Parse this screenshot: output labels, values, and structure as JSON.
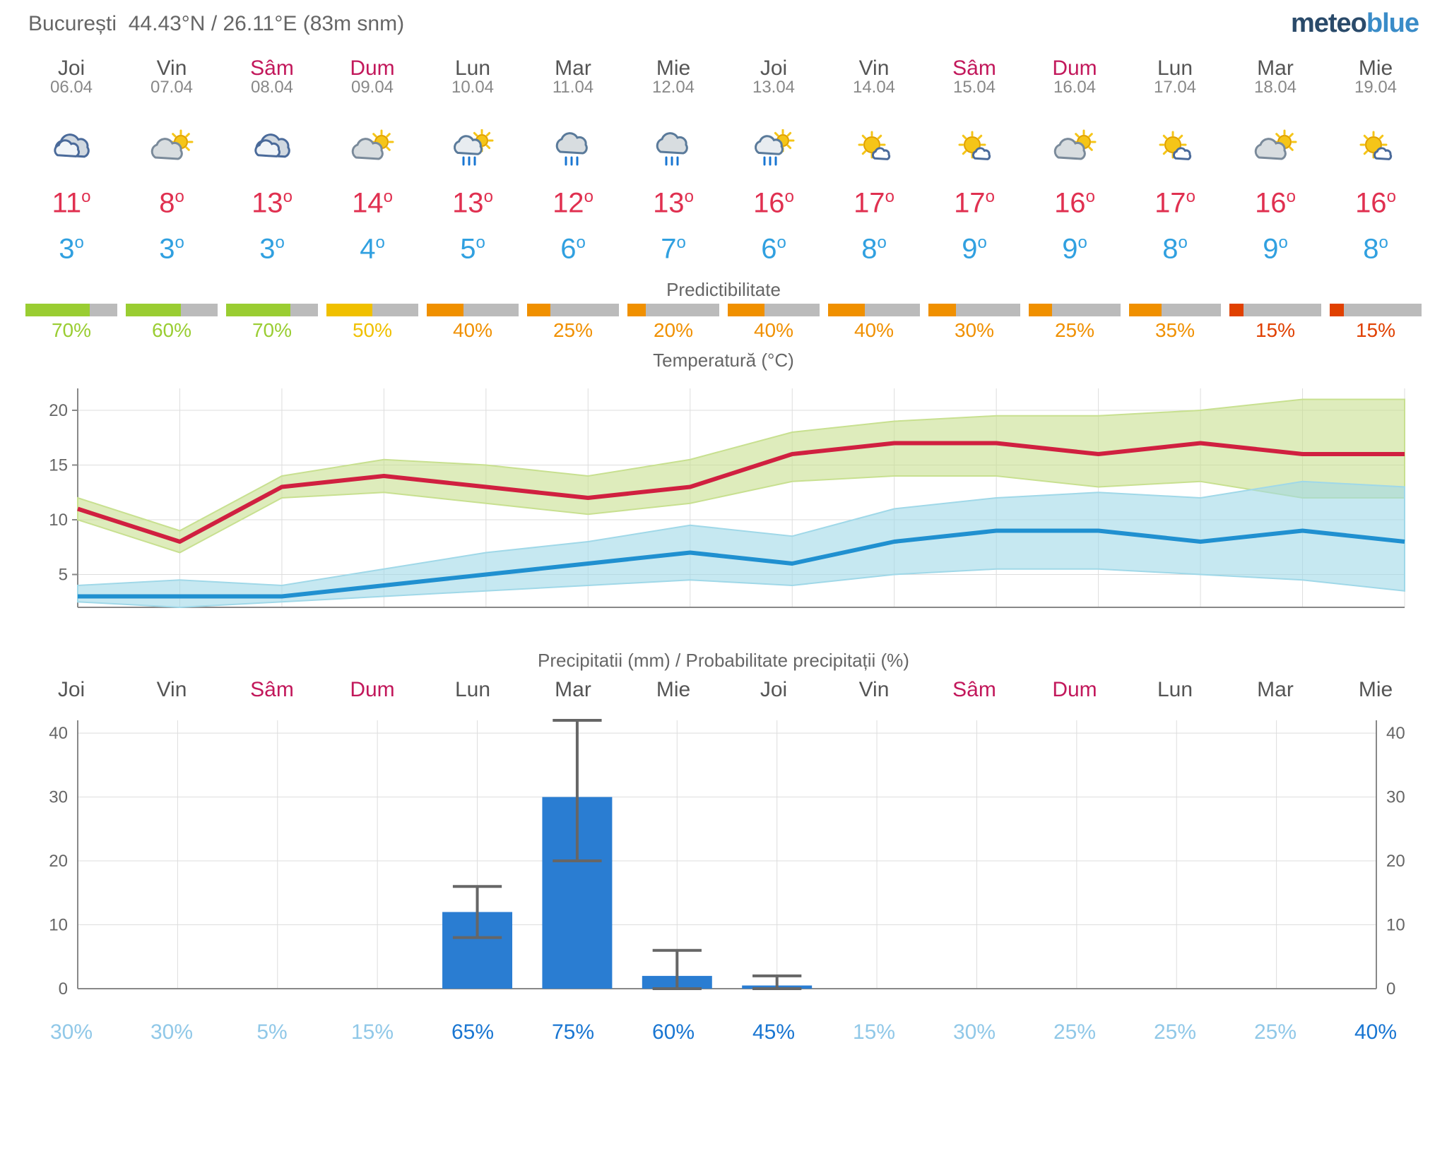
{
  "location": {
    "name": "București",
    "lat_label": "44.43°N",
    "lon_label": "26.11°E",
    "alt_label": "(83m snm)"
  },
  "brand": {
    "part1": "meteo",
    "part2": "blue"
  },
  "days": [
    {
      "name": "Joi",
      "date": "06.04",
      "weekend": false,
      "icon": "cloudy",
      "high": 11,
      "low": 3
    },
    {
      "name": "Vin",
      "date": "07.04",
      "weekend": false,
      "icon": "partly-sunny",
      "high": 8,
      "low": 3
    },
    {
      "name": "Sâm",
      "date": "08.04",
      "weekend": true,
      "icon": "cloudy",
      "high": 13,
      "low": 3
    },
    {
      "name": "Dum",
      "date": "09.04",
      "weekend": true,
      "icon": "partly-sunny",
      "high": 14,
      "low": 4
    },
    {
      "name": "Lun",
      "date": "10.04",
      "weekend": false,
      "icon": "sun-rain",
      "high": 13,
      "low": 5
    },
    {
      "name": "Mar",
      "date": "11.04",
      "weekend": false,
      "icon": "rain",
      "high": 12,
      "low": 6
    },
    {
      "name": "Mie",
      "date": "12.04",
      "weekend": false,
      "icon": "rain",
      "high": 13,
      "low": 7
    },
    {
      "name": "Joi",
      "date": "13.04",
      "weekend": false,
      "icon": "sun-rain",
      "high": 16,
      "low": 6
    },
    {
      "name": "Vin",
      "date": "14.04",
      "weekend": false,
      "icon": "sunny-cloud",
      "high": 17,
      "low": 8
    },
    {
      "name": "Sâm",
      "date": "15.04",
      "weekend": true,
      "icon": "sunny-cloud",
      "high": 17,
      "low": 9
    },
    {
      "name": "Dum",
      "date": "16.04",
      "weekend": true,
      "icon": "partly-sunny",
      "high": 16,
      "low": 9
    },
    {
      "name": "Lun",
      "date": "17.04",
      "weekend": false,
      "icon": "sunny-cloud",
      "high": 17,
      "low": 8
    },
    {
      "name": "Mar",
      "date": "18.04",
      "weekend": false,
      "icon": "partly-sunny",
      "high": 16,
      "low": 9
    },
    {
      "name": "Mie",
      "date": "19.04",
      "weekend": false,
      "icon": "sunny-cloud",
      "high": 16,
      "low": 8
    }
  ],
  "predictability": {
    "title": "Predictibilitate",
    "bars": [
      {
        "pct": 70,
        "color": "#9acd32"
      },
      {
        "pct": 60,
        "color": "#9acd32"
      },
      {
        "pct": 70,
        "color": "#9acd32"
      },
      {
        "pct": 50,
        "color": "#f0c000"
      },
      {
        "pct": 40,
        "color": "#f09000"
      },
      {
        "pct": 25,
        "color": "#f09000"
      },
      {
        "pct": 20,
        "color": "#f09000"
      },
      {
        "pct": 40,
        "color": "#f09000"
      },
      {
        "pct": 40,
        "color": "#f09000"
      },
      {
        "pct": 30,
        "color": "#f09000"
      },
      {
        "pct": 25,
        "color": "#f09000"
      },
      {
        "pct": 35,
        "color": "#f09000"
      },
      {
        "pct": 15,
        "color": "#e04000"
      },
      {
        "pct": 15,
        "color": "#e04000"
      }
    ]
  },
  "temp_chart": {
    "title": "Temperatură (°C)",
    "ylim": [
      2,
      22
    ],
    "yticks": [
      5,
      10,
      15,
      20
    ],
    "grid_color": "#dddddd",
    "axis_color": "#888888",
    "high_line_color": "#d02040",
    "high_band_color": "#c8e090",
    "low_line_color": "#2090d0",
    "low_band_color": "#a0d8e8",
    "series_high": [
      11,
      8,
      13,
      14,
      13,
      12,
      13,
      16,
      17,
      17,
      16,
      17,
      16,
      16
    ],
    "series_high_upper": [
      12,
      9,
      14,
      15.5,
      15,
      14,
      15.5,
      18,
      19,
      19.5,
      19.5,
      20,
      21,
      21
    ],
    "series_high_lower": [
      10,
      7,
      12,
      12.5,
      11.5,
      10.5,
      11.5,
      13.5,
      14,
      14,
      13,
      13.5,
      12,
      12
    ],
    "series_low": [
      3,
      3,
      3,
      4,
      5,
      6,
      7,
      6,
      8,
      9,
      9,
      8,
      9,
      8
    ],
    "series_low_upper": [
      4,
      4.5,
      4,
      5.5,
      7,
      8,
      9.5,
      8.5,
      11,
      12,
      12.5,
      12,
      13.5,
      13
    ],
    "series_low_lower": [
      2.5,
      2,
      2.5,
      3,
      3.5,
      4,
      4.5,
      4,
      5,
      5.5,
      5.5,
      5,
      4.5,
      3.5
    ]
  },
  "precip": {
    "title": "Precipitatii (mm) / Probabilitate precipitații (%)",
    "ylim": [
      0,
      42
    ],
    "yticks": [
      0,
      10,
      20,
      30,
      40
    ],
    "grid_color": "#dddddd",
    "axis_color": "#888888",
    "bar_color": "#2a7dd2",
    "whisker_color": "#666666",
    "amounts": [
      0,
      0,
      0,
      0,
      12,
      30,
      2,
      0.5,
      0,
      0,
      0,
      0,
      0,
      0
    ],
    "err_high": [
      0,
      0,
      0,
      0,
      16,
      42,
      6,
      2,
      0,
      0,
      0,
      0,
      0,
      0
    ],
    "err_low": [
      0,
      0,
      0,
      0,
      8,
      20,
      0,
      0,
      0,
      0,
      0,
      0,
      0,
      0
    ],
    "probabilities": [
      30,
      30,
      5,
      15,
      65,
      75,
      60,
      45,
      15,
      30,
      25,
      25,
      25,
      40
    ]
  },
  "colors": {
    "high_temp": "#e03050",
    "low_temp": "#30a0e0",
    "weekend": "#c2185b",
    "weekday": "#555555",
    "text_muted": "#888888"
  }
}
